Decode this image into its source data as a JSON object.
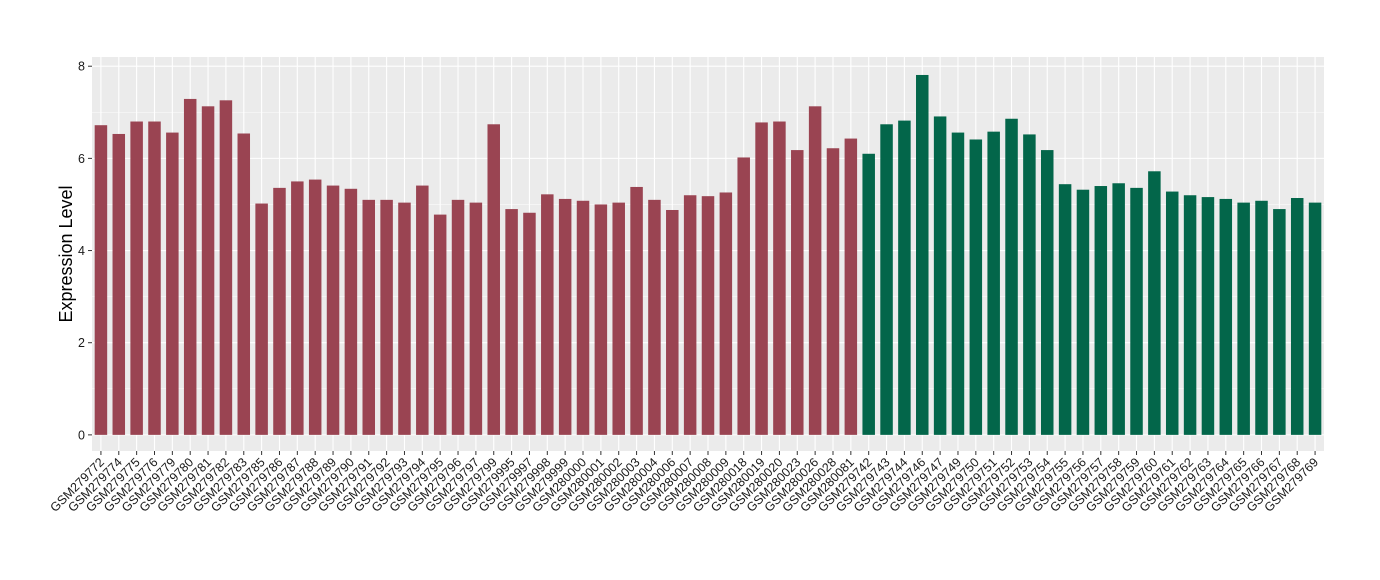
{
  "chart_data": {
    "type": "bar",
    "title": "",
    "xlabel": "",
    "ylabel": "Expression Level",
    "ylim": [
      -0.35,
      8.2
    ],
    "yticks": [
      0,
      2,
      4,
      6,
      8
    ],
    "grid": true,
    "legend": "none",
    "colors": {
      "group1": "#9a4452",
      "group2": "#03664a",
      "panel": "#ebebeb",
      "grid": "#ffffff"
    },
    "categories": [
      "GSM279772",
      "GSM279774",
      "GSM279775",
      "GSM279776",
      "GSM279779",
      "GSM279780",
      "GSM279781",
      "GSM279782",
      "GSM279783",
      "GSM279785",
      "GSM279786",
      "GSM279787",
      "GSM279788",
      "GSM279789",
      "GSM279790",
      "GSM279791",
      "GSM279792",
      "GSM279793",
      "GSM279794",
      "GSM279795",
      "GSM279796",
      "GSM279797",
      "GSM279799",
      "GSM279995",
      "GSM279997",
      "GSM279998",
      "GSM279999",
      "GSM280000",
      "GSM280001",
      "GSM280002",
      "GSM280003",
      "GSM280004",
      "GSM280006",
      "GSM280007",
      "GSM280008",
      "GSM280009",
      "GSM280018",
      "GSM280019",
      "GSM280020",
      "GSM280023",
      "GSM280026",
      "GSM280028",
      "GSM280081",
      "GSM279742",
      "GSM279743",
      "GSM279744",
      "GSM279746",
      "GSM279747",
      "GSM279749",
      "GSM279750",
      "GSM279751",
      "GSM279752",
      "GSM279753",
      "GSM279754",
      "GSM279755",
      "GSM279756",
      "GSM279757",
      "GSM279758",
      "GSM279759",
      "GSM279760",
      "GSM279761",
      "GSM279762",
      "GSM279763",
      "GSM279764",
      "GSM279765",
      "GSM279766",
      "GSM279767",
      "GSM279768",
      "GSM279769"
    ],
    "values": [
      6.72,
      6.53,
      6.8,
      6.8,
      6.56,
      7.29,
      7.13,
      7.26,
      6.54,
      5.02,
      5.36,
      5.5,
      5.54,
      5.41,
      5.34,
      5.1,
      5.1,
      5.04,
      5.41,
      4.78,
      5.1,
      5.04,
      6.74,
      4.9,
      4.82,
      5.22,
      5.12,
      5.08,
      5.0,
      5.04,
      5.38,
      5.1,
      4.88,
      5.2,
      5.18,
      5.26,
      6.02,
      6.78,
      6.8,
      6.18,
      7.13,
      6.22,
      6.43,
      6.1,
      6.74,
      6.82,
      7.81,
      6.91,
      6.56,
      6.41,
      6.58,
      6.86,
      6.52,
      6.18,
      5.44,
      5.32,
      5.4,
      5.46,
      5.36,
      5.72,
      5.28,
      5.2,
      5.16,
      5.12,
      5.04,
      5.08,
      4.9,
      5.14,
      5.04
    ],
    "groups": [
      1,
      1,
      1,
      1,
      1,
      1,
      1,
      1,
      1,
      1,
      1,
      1,
      1,
      1,
      1,
      1,
      1,
      1,
      1,
      1,
      1,
      1,
      1,
      1,
      1,
      1,
      1,
      1,
      1,
      1,
      1,
      1,
      1,
      1,
      1,
      1,
      1,
      1,
      1,
      1,
      1,
      1,
      1,
      2,
      2,
      2,
      2,
      2,
      2,
      2,
      2,
      2,
      2,
      2,
      2,
      2,
      2,
      2,
      2,
      2,
      2,
      2,
      2,
      2,
      2,
      2,
      2,
      2,
      2
    ]
  }
}
